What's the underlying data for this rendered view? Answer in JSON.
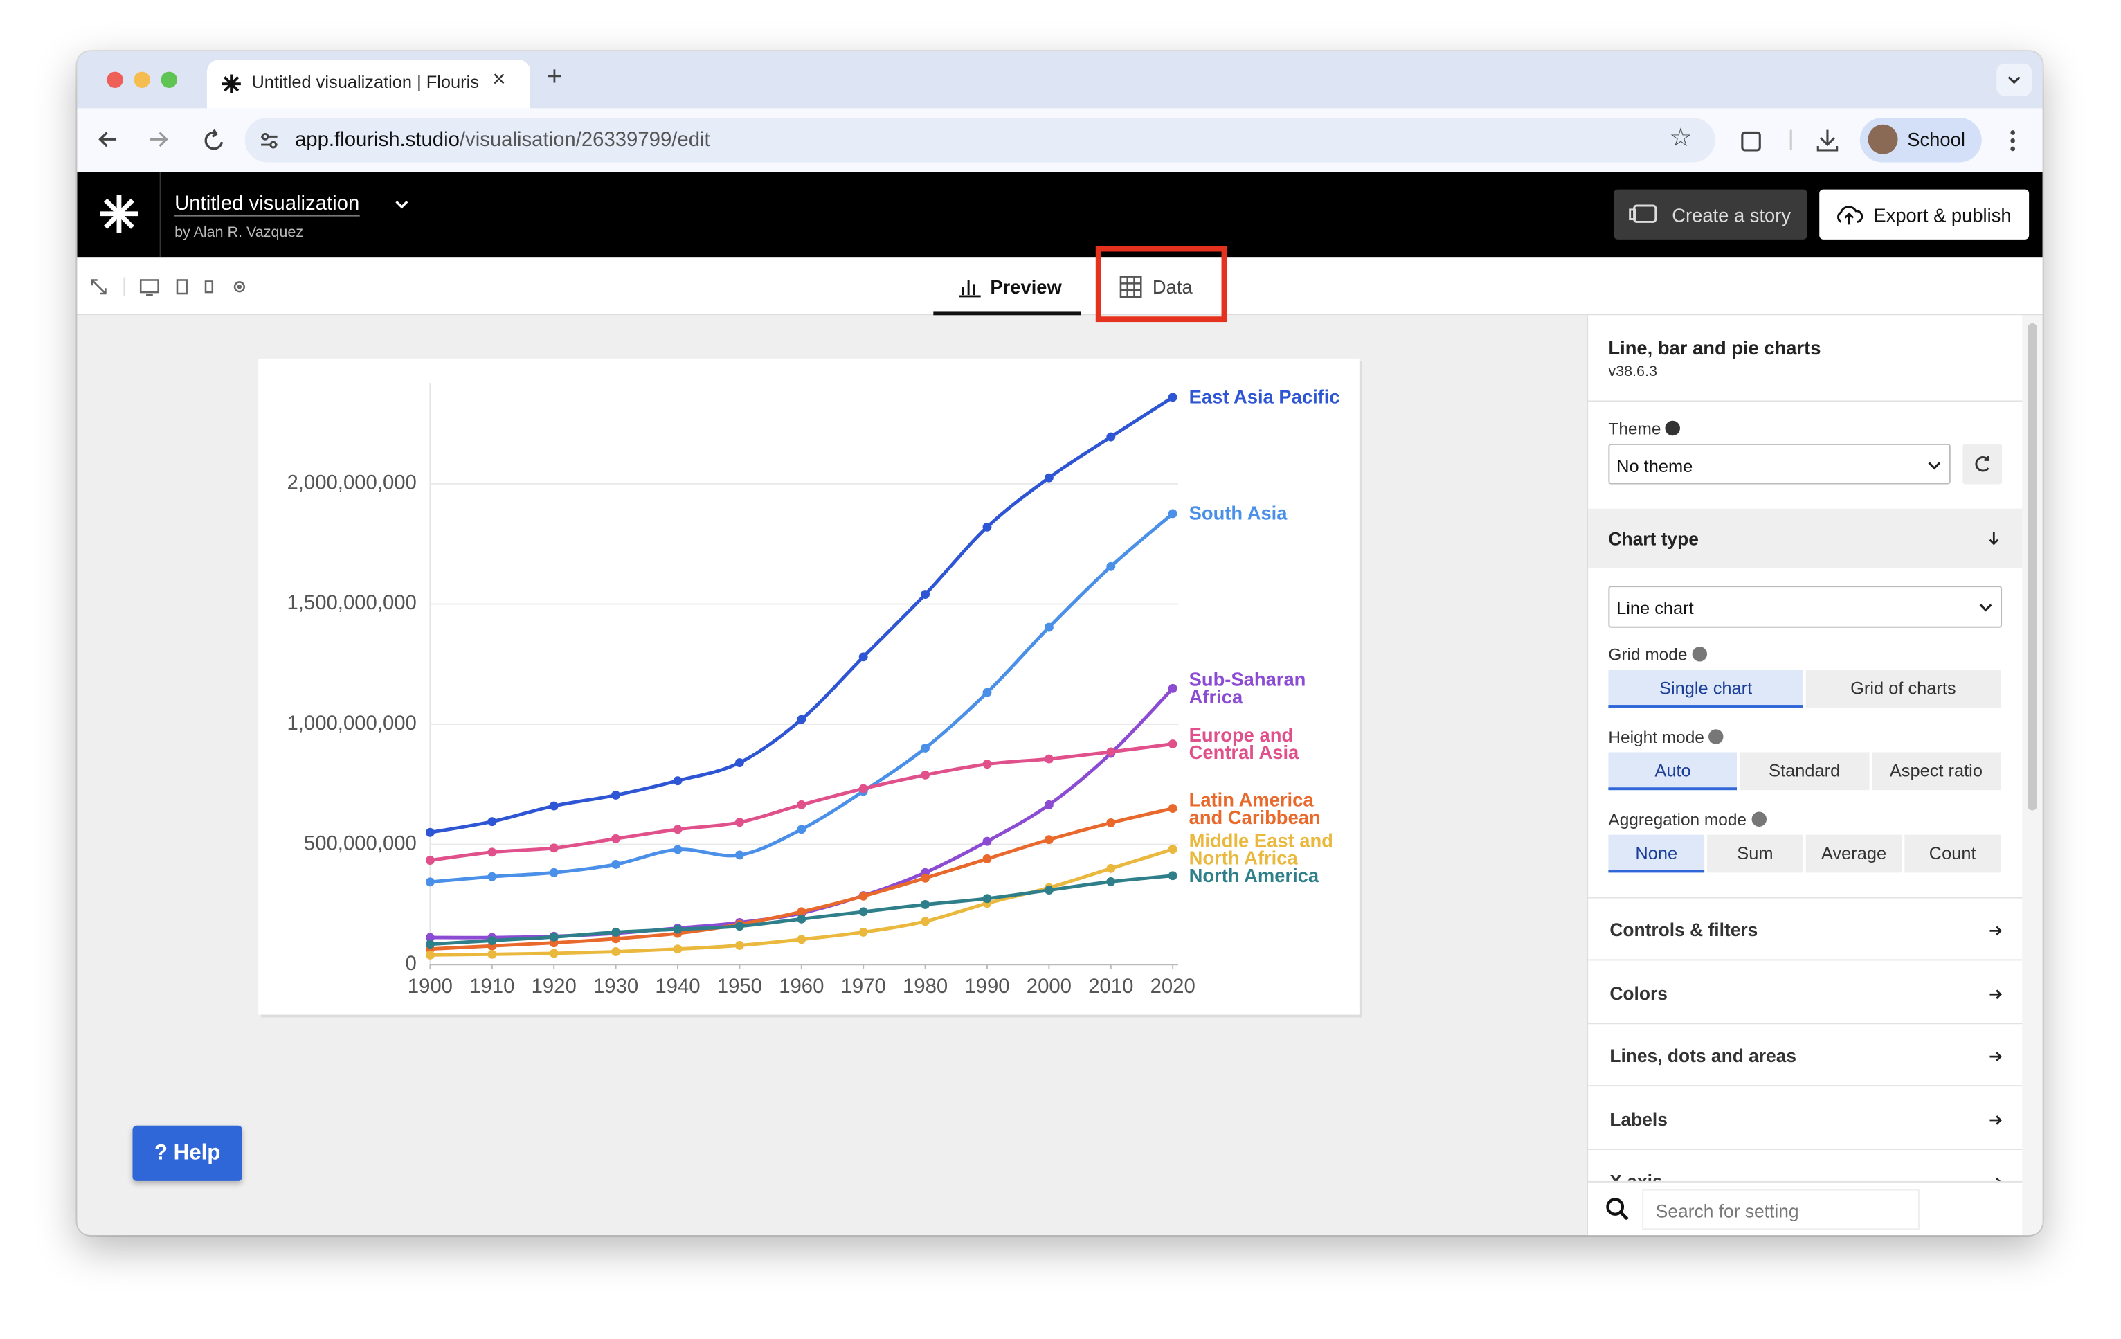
{
  "browser": {
    "tab_title": "Untitled visualization | Flouris",
    "url_host": "app.flourish.studio",
    "url_path": "/visualisation/26339799/edit",
    "profile": "School"
  },
  "app": {
    "title": "Untitled visualization",
    "author": "by Alan R. Vazquez",
    "buttons": [
      "Create a story",
      "Export & publish"
    ]
  },
  "view_tabs": [
    "Preview",
    "Data"
  ],
  "help": "? Help",
  "sidebar": {
    "title": "Line, bar and pie charts",
    "version": "v38.6.3",
    "theme_label": "Theme",
    "theme_value": "No theme",
    "chart_type_heading": "Chart type",
    "chart_type_value": "Line chart",
    "grid_mode": {
      "label": "Grid mode",
      "options": [
        "Single chart",
        "Grid of charts"
      ]
    },
    "height_mode": {
      "label": "Height mode",
      "options": [
        "Auto",
        "Standard",
        "Aspect ratio"
      ]
    },
    "aggregation_mode": {
      "label": "Aggregation mode",
      "options": [
        "None",
        "Sum",
        "Average",
        "Count"
      ]
    },
    "sections": [
      "Controls & filters",
      "Colors",
      "Lines, dots and areas",
      "Labels",
      "X axis"
    ],
    "search_placeholder": "Search for setting"
  },
  "chart_data": {
    "type": "line",
    "x": [
      1900,
      1910,
      1920,
      1930,
      1940,
      1950,
      1960,
      1970,
      1980,
      1990,
      2000,
      2010,
      2020
    ],
    "xlim": [
      1900,
      2020
    ],
    "xticks": [
      1900,
      1910,
      1920,
      1930,
      1940,
      1950,
      1960,
      1970,
      1980,
      1990,
      2000,
      2010,
      2020
    ],
    "ylim": [
      0,
      2420000000
    ],
    "yticks": [
      0,
      {
        "value": 500000000,
        "label": "500,000,000"
      },
      {
        "value": 1000000000,
        "label": "1,000,000,000"
      },
      {
        "value": 1500000000,
        "label": "1,500,000,000"
      },
      {
        "value": 2000000000,
        "label": "2,000,000,000"
      }
    ],
    "grid": true,
    "series": [
      {
        "name": "East Asia Pacific",
        "color": "#2e55d4",
        "values": [
          550000000,
          595000000,
          660000000,
          705000000,
          765000000,
          840000000,
          1020000000,
          1280000000,
          1540000000,
          1820000000,
          2025000000,
          2195000000,
          2360000000
        ]
      },
      {
        "name": "South Asia",
        "color": "#4a90e8",
        "values": [
          344000000,
          366000000,
          383000000,
          417000000,
          479000000,
          456000000,
          563000000,
          721000000,
          901000000,
          1132000000,
          1403000000,
          1656000000,
          1876000000
        ]
      },
      {
        "name": "Sub-Saharan Africa",
        "color": "#8c4bd3",
        "values": [
          113000000,
          113000000,
          118000000,
          130000000,
          152000000,
          175000000,
          214000000,
          287000000,
          383000000,
          513000000,
          665000000,
          879000000,
          1149000000
        ]
      },
      {
        "name": "Europe and Central Asia",
        "color": "#e0508a",
        "values": [
          434000000,
          468000000,
          485000000,
          524000000,
          563000000,
          592000000,
          665000000,
          732000000,
          789000000,
          834000000,
          856000000,
          885000000,
          918000000
        ]
      },
      {
        "name": "Latin America and Caribbean",
        "color": "#e8692b",
        "values": [
          65000000,
          78000000,
          91000000,
          108000000,
          130000000,
          168000000,
          220000000,
          285000000,
          360000000,
          440000000,
          520000000,
          590000000,
          650000000
        ]
      },
      {
        "name": "Middle East and North Africa",
        "color": "#e9b83c",
        "values": [
          40000000,
          43000000,
          47000000,
          54000000,
          65000000,
          80000000,
          105000000,
          135000000,
          180000000,
          255000000,
          320000000,
          400000000,
          480000000
        ]
      },
      {
        "name": "North America",
        "color": "#2e7f8a",
        "values": [
          85000000,
          100000000,
          115000000,
          135000000,
          147000000,
          160000000,
          190000000,
          220000000,
          250000000,
          275000000,
          310000000,
          345000000,
          370000000
        ]
      }
    ]
  }
}
